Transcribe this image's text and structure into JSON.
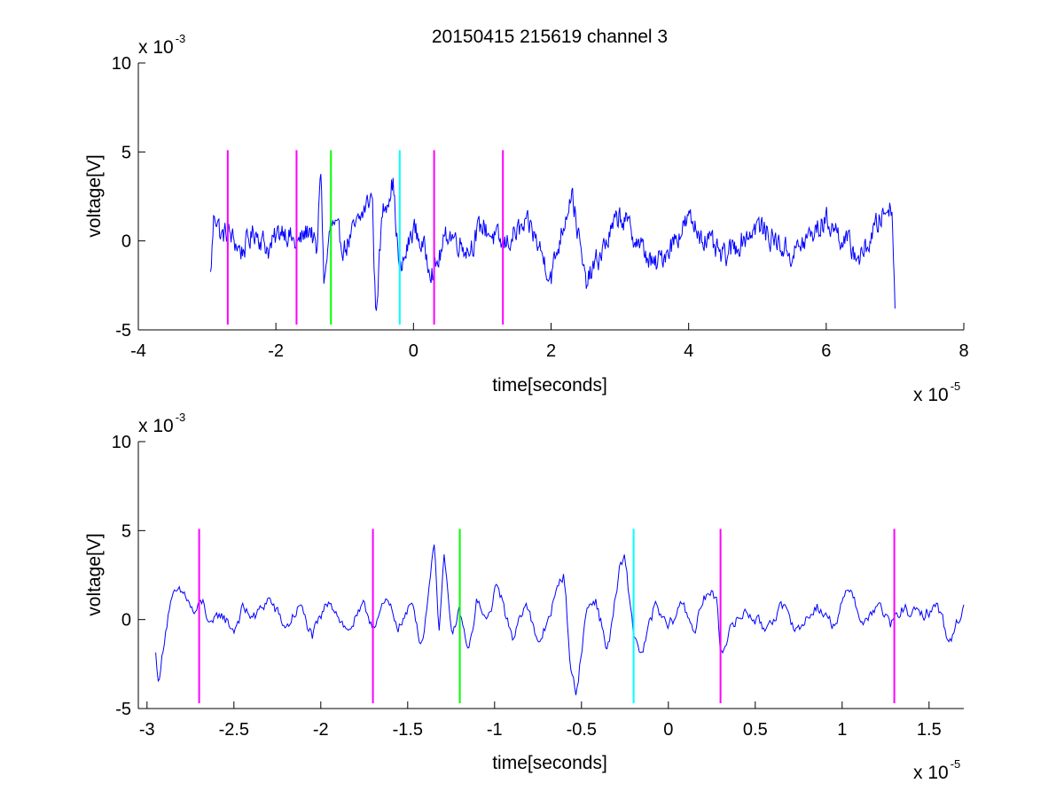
{
  "chart_data": [
    {
      "type": "line",
      "title": "20150415 215619 channel 3",
      "xlabel": "time[seconds]",
      "ylabel": "voltage[V]",
      "x_exponent_label": "x 10",
      "x_exponent": "-5",
      "y_exponent_label": "x 10",
      "y_exponent": "-3",
      "xlim": [
        -4,
        8
      ],
      "ylim": [
        -5,
        10
      ],
      "x_ticks": [
        -4,
        -2,
        0,
        2,
        4,
        6,
        8
      ],
      "x_tick_labels": [
        "-4",
        "-2",
        "0",
        "2",
        "4",
        "6",
        "8"
      ],
      "y_ticks": [
        -5,
        0,
        5,
        10
      ],
      "y_tick_labels": [
        "-5",
        "0",
        "5",
        "10"
      ],
      "grid": false,
      "series": [
        {
          "color": "#0000ff",
          "x_range": [
            -2.95,
            7.0
          ],
          "segments": [
            [
              -2.95,
              -2.0
            ],
            [
              -2.9,
              1.5
            ],
            [
              -2.85,
              1.3
            ],
            [
              -2.8,
              0.2
            ],
            [
              -2.7,
              0.5
            ],
            [
              -2.5,
              -0.6
            ],
            [
              -2.3,
              0.6
            ],
            [
              -2.1,
              -0.5
            ],
            [
              -1.9,
              0.8
            ],
            [
              -1.7,
              -0.3
            ],
            [
              -1.5,
              0.8
            ],
            [
              -1.4,
              -0.9
            ],
            [
              -1.35,
              4.6
            ],
            [
              -1.3,
              -2.5
            ],
            [
              -1.2,
              1.0
            ],
            [
              -1.0,
              -0.4
            ],
            [
              -0.8,
              1.0
            ],
            [
              -0.6,
              2.7
            ],
            [
              -0.55,
              -4.2
            ],
            [
              -0.45,
              1.6
            ],
            [
              -0.3,
              3.4
            ],
            [
              -0.2,
              -2.0
            ],
            [
              0.0,
              0.8
            ],
            [
              0.3,
              -1.8
            ],
            [
              0.5,
              0.5
            ],
            [
              0.8,
              -0.5
            ],
            [
              1.0,
              0.9
            ],
            [
              1.3,
              -0.3
            ],
            [
              1.5,
              0.5
            ],
            [
              1.7,
              0.8
            ],
            [
              2.0,
              -2.0
            ],
            [
              2.3,
              2.9
            ],
            [
              2.5,
              -2.5
            ],
            [
              3.0,
              1.5
            ],
            [
              3.5,
              -1.5
            ],
            [
              4.0,
              1.2
            ],
            [
              4.5,
              -1.0
            ],
            [
              5.0,
              0.9
            ],
            [
              5.5,
              -0.8
            ],
            [
              6.0,
              1.2
            ],
            [
              6.5,
              -1.0
            ],
            [
              6.8,
              1.4
            ],
            [
              6.95,
              2.1
            ],
            [
              7.0,
              -3.2
            ]
          ]
        }
      ],
      "markers": [
        {
          "x": -2.7,
          "color": "#ff00ff"
        },
        {
          "x": -1.7,
          "color": "#ff00ff"
        },
        {
          "x": -1.2,
          "color": "#00ff00"
        },
        {
          "x": -0.2,
          "color": "#00ffff"
        },
        {
          "x": 0.3,
          "color": "#ff00ff"
        },
        {
          "x": 1.3,
          "color": "#ff00ff"
        }
      ],
      "marker_ylim": [
        -4.7,
        5.1
      ]
    },
    {
      "type": "line",
      "xlabel": "time[seconds]",
      "ylabel": "voltage[V]",
      "x_exponent_label": "x 10",
      "x_exponent": "-5",
      "y_exponent_label": "x 10",
      "y_exponent": "-3",
      "xlim": [
        -3.05,
        1.7
      ],
      "ylim": [
        -5,
        10
      ],
      "x_ticks": [
        -3,
        -2.5,
        -2,
        -1.5,
        -1,
        -0.5,
        0,
        0.5,
        1,
        1.5
      ],
      "x_tick_labels": [
        "-3",
        "-2.5",
        "-2",
        "-1.5",
        "-1",
        "-0.5",
        "0",
        "0.5",
        "1",
        "1.5"
      ],
      "y_ticks": [
        -5,
        0,
        5,
        10
      ],
      "y_tick_labels": [
        "-5",
        "0",
        "5",
        "10"
      ],
      "grid": false,
      "series": [
        {
          "color": "#0000ff",
          "x_range": [
            -2.95,
            1.7
          ],
          "keypoints": [
            [
              -2.95,
              -2.0
            ],
            [
              -2.93,
              -3.6
            ],
            [
              -2.9,
              -1.0
            ],
            [
              -2.87,
              0.8
            ],
            [
              -2.83,
              1.5
            ],
            [
              -2.78,
              1.4
            ],
            [
              -2.73,
              0.3
            ],
            [
              -2.68,
              1.0
            ],
            [
              -2.63,
              -0.5
            ],
            [
              -2.58,
              0.4
            ],
            [
              -2.5,
              -0.6
            ],
            [
              -2.45,
              0.6
            ],
            [
              -2.38,
              0.1
            ],
            [
              -2.3,
              1.2
            ],
            [
              -2.2,
              -0.5
            ],
            [
              -2.12,
              0.8
            ],
            [
              -2.05,
              -1.0
            ],
            [
              -1.95,
              1.2
            ],
            [
              -1.85,
              -0.7
            ],
            [
              -1.75,
              0.7
            ],
            [
              -1.7,
              -0.3
            ],
            [
              -1.62,
              1.0
            ],
            [
              -1.55,
              -0.4
            ],
            [
              -1.47,
              0.9
            ],
            [
              -1.42,
              -1.5
            ],
            [
              -1.38,
              1.5
            ],
            [
              -1.35,
              4.6
            ],
            [
              -1.32,
              -0.5
            ],
            [
              -1.29,
              3.7
            ],
            [
              -1.25,
              -1.0
            ],
            [
              -1.2,
              0.5
            ],
            [
              -1.15,
              -2.0
            ],
            [
              -1.1,
              1.2
            ],
            [
              -1.05,
              -0.3
            ],
            [
              -0.98,
              2.1
            ],
            [
              -0.9,
              -1.2
            ],
            [
              -0.82,
              1.2
            ],
            [
              -0.75,
              -1.6
            ],
            [
              -0.66,
              1.0
            ],
            [
              -0.6,
              2.7
            ],
            [
              -0.56,
              -3.0
            ],
            [
              -0.53,
              -4.2
            ],
            [
              -0.47,
              0.6
            ],
            [
              -0.42,
              1.2
            ],
            [
              -0.35,
              -1.8
            ],
            [
              -0.28,
              2.8
            ],
            [
              -0.25,
              3.4
            ],
            [
              -0.2,
              -0.8
            ],
            [
              -0.15,
              -2.0
            ],
            [
              -0.08,
              0.8
            ],
            [
              0.0,
              -0.5
            ],
            [
              0.08,
              1.0
            ],
            [
              0.15,
              -0.6
            ],
            [
              0.22,
              1.5
            ],
            [
              0.28,
              1.2
            ],
            [
              0.3,
              -1.8
            ],
            [
              0.38,
              -0.2
            ],
            [
              0.45,
              0.5
            ],
            [
              0.55,
              -0.5
            ],
            [
              0.65,
              0.7
            ],
            [
              0.75,
              -0.6
            ],
            [
              0.85,
              0.8
            ],
            [
              0.95,
              -0.3
            ],
            [
              1.05,
              1.9
            ],
            [
              1.12,
              -0.4
            ],
            [
              1.2,
              0.9
            ],
            [
              1.28,
              -0.3
            ],
            [
              1.35,
              0.6
            ],
            [
              1.45,
              0.2
            ],
            [
              1.55,
              0.8
            ],
            [
              1.62,
              -1.3
            ],
            [
              1.7,
              0.8
            ]
          ]
        }
      ],
      "markers": [
        {
          "x": -2.7,
          "color": "#ff00ff"
        },
        {
          "x": -1.7,
          "color": "#ff00ff"
        },
        {
          "x": -1.2,
          "color": "#00ff00"
        },
        {
          "x": -0.2,
          "color": "#00ffff"
        },
        {
          "x": 0.3,
          "color": "#ff00ff"
        },
        {
          "x": 1.3,
          "color": "#ff00ff"
        }
      ],
      "marker_ylim": [
        -4.7,
        5.1
      ]
    }
  ]
}
